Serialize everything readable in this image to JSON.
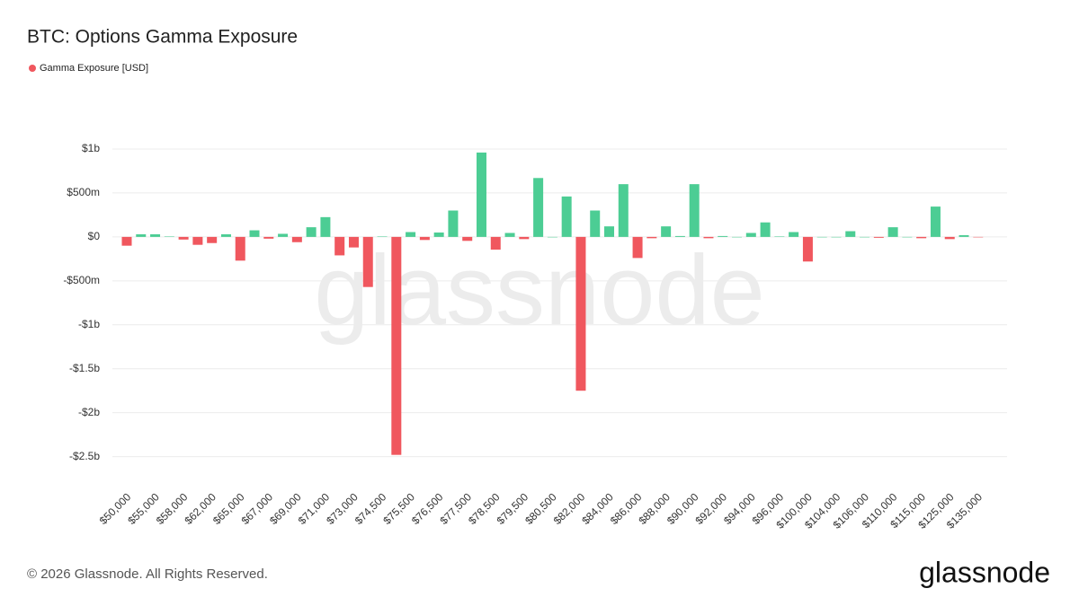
{
  "chart_data": {
    "type": "bar",
    "title": "BTC: Options Gamma Exposure",
    "categories": [
      "$50,000",
      null,
      "$55,000",
      null,
      "$58,000",
      null,
      "$62,000",
      null,
      "$65,000",
      null,
      "$67,000",
      null,
      "$69,000",
      null,
      "$71,000",
      null,
      "$73,000",
      null,
      "$74,500",
      null,
      "$75,500",
      null,
      "$76,500",
      null,
      "$77,500",
      null,
      "$78,500",
      null,
      "$79,500",
      null,
      "$80,500",
      null,
      "$82,000",
      null,
      "$84,000",
      null,
      "$86,000",
      null,
      "$88,000",
      null,
      "$90,000",
      null,
      "$92,000",
      null,
      "$94,000",
      null,
      "$96,000",
      null,
      "$100,000",
      null,
      "$104,000",
      null,
      "$106,000",
      null,
      "$110,000",
      null,
      "$115,000",
      null,
      "$125,000",
      null,
      "$135,000"
    ],
    "series": [
      {
        "name": "Gamma Exposure [USD]",
        "color": "#f0575e",
        "values": [
          -100000000,
          30000000,
          30000000,
          5000000,
          -30000000,
          -90000000,
          -70000000,
          30000000,
          -270000000,
          75000000,
          -20000000,
          35000000,
          -60000000,
          110000000,
          225000000,
          -210000000,
          -120000000,
          -570000000,
          5000000,
          -2480000000,
          55000000,
          -35000000,
          50000000,
          300000000,
          -45000000,
          960000000,
          -145000000,
          45000000,
          -25000000,
          670000000,
          0,
          460000000,
          -1750000000,
          300000000,
          120000000,
          600000000,
          -240000000,
          -15000000,
          120000000,
          10000000,
          600000000,
          -15000000,
          10000000,
          0,
          45000000,
          165000000,
          5000000,
          55000000,
          -280000000,
          0,
          0,
          65000000,
          0,
          -10000000,
          110000000,
          0,
          -15000000,
          345000000,
          -25000000,
          20000000,
          -5000000
        ]
      }
    ],
    "positive_color": "#4ccd94",
    "ylim": [
      -2800000000,
      1200000000
    ],
    "yticks": [
      {
        "value": 1000000000,
        "label": "$1b"
      },
      {
        "value": 500000000,
        "label": "$500m"
      },
      {
        "value": 0,
        "label": "$0"
      },
      {
        "value": -500000000,
        "label": "-$500m"
      },
      {
        "value": -1000000000,
        "label": "-$1b"
      },
      {
        "value": -1500000000,
        "label": "-$1.5b"
      },
      {
        "value": -2000000000,
        "label": "-$2b"
      },
      {
        "value": -2500000000,
        "label": "-$2.5b"
      }
    ],
    "grid": true,
    "watermark": "glassnode",
    "footer": "© 2026 Glassnode. All Rights Reserved.",
    "logo": "glassnode"
  }
}
